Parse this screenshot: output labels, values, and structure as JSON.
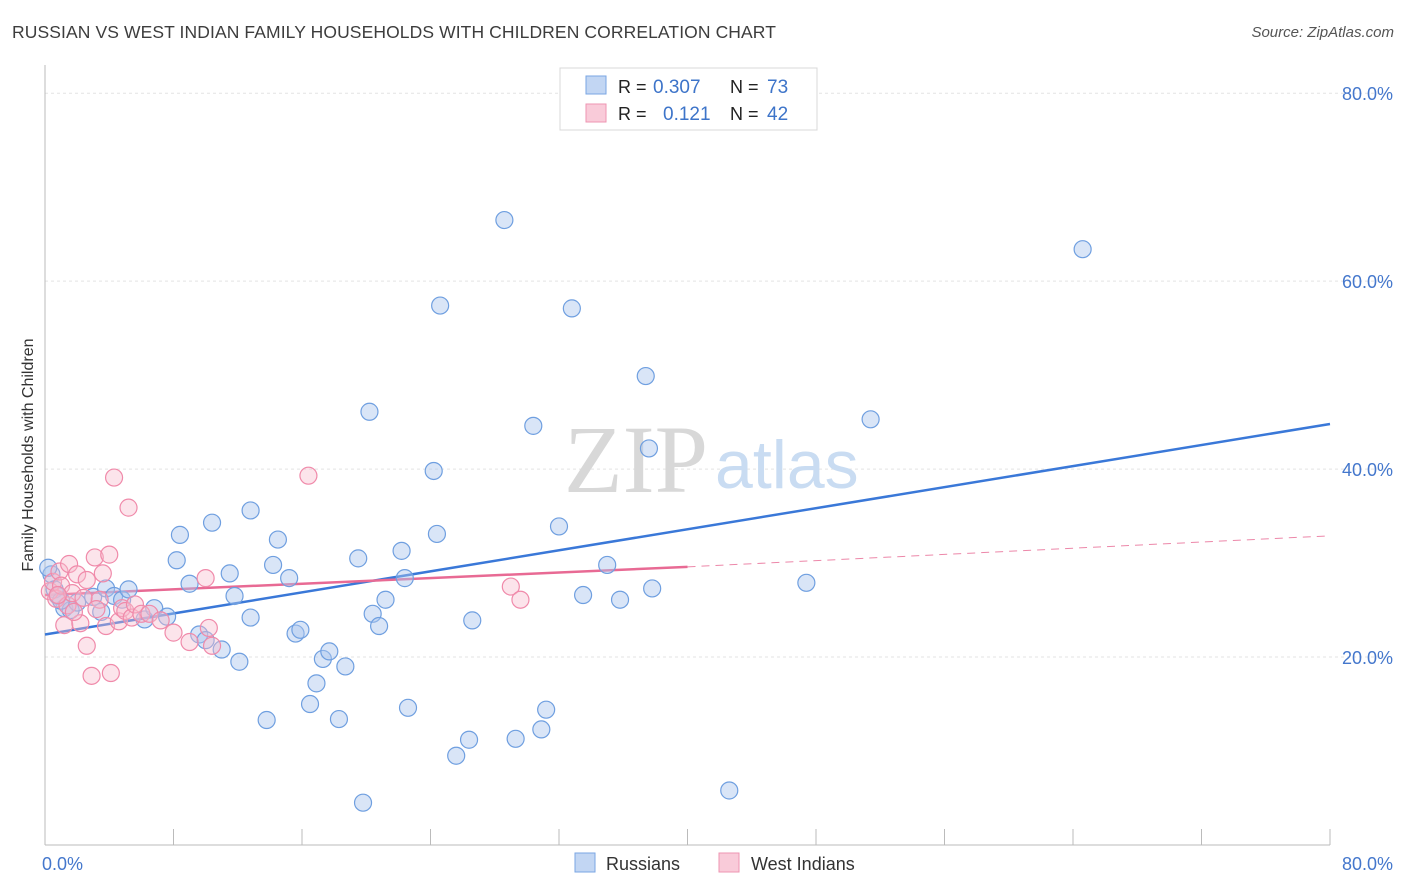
{
  "title": "RUSSIAN VS WEST INDIAN FAMILY HOUSEHOLDS WITH CHILDREN CORRELATION CHART",
  "source": "Source: ZipAtlas.com",
  "watermark": {
    "zip": "ZIP",
    "atlas": "atlas"
  },
  "legend_top": [
    {
      "r_label": "R = ",
      "r_value": "0.307",
      "n_label": "N = ",
      "n_value": "73"
    },
    {
      "r_label": "R = ",
      "r_value": "0.121",
      "n_label": "N = ",
      "n_value": "42"
    }
  ],
  "chart_data": {
    "type": "scatter",
    "title": "RUSSIAN VS WEST INDIAN FAMILY HOUSEHOLDS WITH CHILDREN CORRELATION CHART",
    "xlabel": "",
    "ylabel": "Family Households with Children",
    "xlim": [
      0,
      80
    ],
    "ylim": [
      0,
      83
    ],
    "x_tick_labels": [
      "0.0%",
      "80.0%"
    ],
    "y_ticks": [
      20,
      40,
      60,
      80
    ],
    "y_tick_labels": [
      "20.0%",
      "40.0%",
      "60.0%",
      "80.0%"
    ],
    "grid": true,
    "legend_position": "bottom-center",
    "colors": {
      "russians": "#6f9fe0",
      "west_indians": "#f08aaa",
      "russians_line": "#3a78d8",
      "west_indians_line": "#e86a94",
      "tick_label": "#4477cc"
    },
    "series": [
      {
        "name": "Russians",
        "r": 0.307,
        "n": 73,
        "trend": {
          "x": [
            0,
            80
          ],
          "y": [
            22.4,
            44.8
          ]
        },
        "points": [
          [
            0.4,
            28.8
          ],
          [
            0.6,
            27.2
          ],
          [
            0.8,
            26.5
          ],
          [
            1.2,
            25.2
          ],
          [
            1.6,
            25.0
          ],
          [
            2.0,
            25.8
          ],
          [
            3.0,
            26.4
          ],
          [
            3.8,
            27.3
          ],
          [
            4.3,
            26.5
          ],
          [
            4.8,
            26.1
          ],
          [
            5.2,
            27.2
          ],
          [
            6.2,
            24.0
          ],
          [
            6.8,
            25.2
          ],
          [
            7.6,
            24.3
          ],
          [
            8.2,
            30.3
          ],
          [
            8.4,
            33.0
          ],
          [
            9.0,
            27.8
          ],
          [
            9.6,
            22.4
          ],
          [
            10.0,
            21.8
          ],
          [
            10.4,
            34.3
          ],
          [
            11.0,
            20.8
          ],
          [
            11.5,
            28.9
          ],
          [
            11.8,
            26.5
          ],
          [
            12.1,
            19.5
          ],
          [
            12.8,
            24.2
          ],
          [
            12.8,
            35.6
          ],
          [
            13.8,
            13.3
          ],
          [
            14.2,
            29.8
          ],
          [
            14.5,
            32.5
          ],
          [
            15.2,
            28.4
          ],
          [
            15.6,
            22.5
          ],
          [
            15.9,
            22.9
          ],
          [
            16.5,
            15.0
          ],
          [
            16.9,
            17.2
          ],
          [
            17.3,
            19.8
          ],
          [
            17.7,
            20.6
          ],
          [
            18.3,
            13.4
          ],
          [
            18.7,
            19.0
          ],
          [
            19.5,
            30.5
          ],
          [
            19.8,
            4.5
          ],
          [
            20.2,
            46.1
          ],
          [
            20.4,
            24.6
          ],
          [
            20.8,
            23.3
          ],
          [
            21.2,
            26.1
          ],
          [
            22.2,
            31.3
          ],
          [
            22.4,
            28.4
          ],
          [
            22.6,
            14.6
          ],
          [
            24.2,
            39.8
          ],
          [
            24.4,
            33.1
          ],
          [
            24.6,
            57.4
          ],
          [
            25.6,
            9.5
          ],
          [
            26.4,
            11.2
          ],
          [
            26.6,
            23.9
          ],
          [
            28.6,
            66.5
          ],
          [
            29.3,
            11.3
          ],
          [
            30.4,
            44.6
          ],
          [
            30.9,
            12.3
          ],
          [
            31.2,
            14.4
          ],
          [
            32.0,
            33.9
          ],
          [
            32.8,
            57.1
          ],
          [
            33.5,
            26.6
          ],
          [
            35.0,
            29.8
          ],
          [
            35.8,
            26.1
          ],
          [
            37.4,
            49.9
          ],
          [
            37.6,
            42.2
          ],
          [
            37.8,
            27.3
          ],
          [
            42.6,
            5.8
          ],
          [
            47.4,
            27.9
          ],
          [
            51.4,
            45.3
          ],
          [
            64.6,
            63.4
          ],
          [
            0.2,
            29.5
          ],
          [
            1.0,
            26.0
          ],
          [
            3.5,
            24.8
          ]
        ]
      },
      {
        "name": "West Indians",
        "r": 0.121,
        "n": 42,
        "trend": {
          "x": [
            0,
            40
          ],
          "y": [
            26.6,
            29.6
          ]
        },
        "trend_ext": {
          "x": [
            40,
            80
          ],
          "y": [
            29.6,
            32.9
          ]
        },
        "points": [
          [
            0.3,
            27.0
          ],
          [
            0.5,
            28.0
          ],
          [
            0.7,
            26.2
          ],
          [
            0.9,
            29.1
          ],
          [
            1.0,
            27.6
          ],
          [
            1.2,
            23.4
          ],
          [
            1.4,
            25.5
          ],
          [
            1.5,
            29.9
          ],
          [
            1.7,
            26.8
          ],
          [
            2.0,
            28.8
          ],
          [
            2.2,
            23.6
          ],
          [
            2.6,
            28.2
          ],
          [
            2.6,
            21.2
          ],
          [
            2.9,
            18.0
          ],
          [
            3.1,
            30.6
          ],
          [
            3.4,
            26.1
          ],
          [
            3.6,
            28.9
          ],
          [
            3.8,
            23.3
          ],
          [
            4.0,
            30.9
          ],
          [
            4.1,
            18.3
          ],
          [
            4.3,
            39.1
          ],
          [
            4.6,
            23.8
          ],
          [
            4.8,
            25.2
          ],
          [
            5.0,
            24.9
          ],
          [
            5.2,
            35.9
          ],
          [
            5.4,
            24.2
          ],
          [
            5.6,
            25.6
          ],
          [
            6.0,
            24.6
          ],
          [
            6.5,
            24.6
          ],
          [
            7.2,
            23.9
          ],
          [
            8.0,
            22.6
          ],
          [
            9.0,
            21.6
          ],
          [
            10.0,
            28.4
          ],
          [
            10.2,
            23.1
          ],
          [
            10.4,
            21.2
          ],
          [
            16.4,
            39.3
          ],
          [
            29.0,
            27.5
          ],
          [
            29.6,
            26.1
          ],
          [
            0.8,
            26.6
          ],
          [
            1.8,
            24.8
          ],
          [
            2.4,
            26.3
          ],
          [
            3.2,
            25.1
          ]
        ]
      }
    ]
  },
  "legend_bottom": [
    "Russians",
    "West Indians"
  ]
}
